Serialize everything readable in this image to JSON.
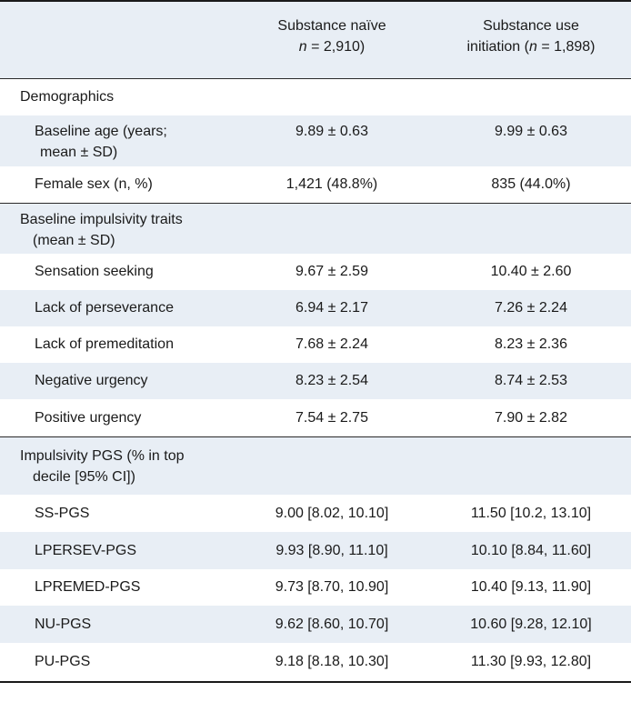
{
  "header": {
    "col1": "",
    "col2_line1": "Substance naïve",
    "col2_n": "n",
    "col2_line2_rest": " = 2,910)",
    "col3_line1": "Substance use",
    "col3_line2_pre": "initiation (",
    "col3_n": "n",
    "col3_line2_rest": " = 1,898)"
  },
  "sections": {
    "demographics": {
      "title": "Demographics",
      "rows": [
        {
          "label_line1": "Baseline age (years;",
          "label_line2": "mean ± SD)",
          "naive": "9.89 ± 0.63",
          "initiation": "9.99 ± 0.63"
        },
        {
          "label_line1": "Female sex (n, %)",
          "naive": "1,421 (48.8%)",
          "initiation": "835 (44.0%)"
        }
      ]
    },
    "impulsivity": {
      "title_line1": "Baseline impulsivity traits",
      "title_line2": "(mean ± SD)",
      "rows": [
        {
          "label": "Sensation seeking",
          "naive": "9.67 ± 2.59",
          "initiation": "10.40 ± 2.60"
        },
        {
          "label": "Lack of perseverance",
          "naive": "6.94 ± 2.17",
          "initiation": "7.26 ± 2.24"
        },
        {
          "label": "Lack of premeditation",
          "naive": "7.68 ± 2.24",
          "initiation": "8.23 ± 2.36"
        },
        {
          "label": "Negative urgency",
          "naive": "8.23 ± 2.54",
          "initiation": "8.74 ± 2.53"
        },
        {
          "label": "Positive urgency",
          "naive": "7.54 ± 2.75",
          "initiation": "7.90 ± 2.82"
        }
      ]
    },
    "pgs": {
      "title_line1": "Impulsivity PGS (% in top",
      "title_line2": "decile [95% CI])",
      "rows": [
        {
          "label": "SS-PGS",
          "naive": "9.00 [8.02, 10.10]",
          "initiation": "11.50 [10.2, 13.10]"
        },
        {
          "label": "LPERSEV-PGS",
          "naive": "9.93 [8.90, 11.10]",
          "initiation": "10.10 [8.84, 11.60]"
        },
        {
          "label": "LPREMED-PGS",
          "naive": "9.73 [8.70, 10.90]",
          "initiation": "10.40 [9.13, 11.90]"
        },
        {
          "label": "NU-PGS",
          "naive": "9.62 [8.60, 10.70]",
          "initiation": "10.60 [9.28, 12.10]"
        },
        {
          "label": "PU-PGS",
          "naive": "9.18 [8.18, 10.30]",
          "initiation": "11.30 [9.93, 12.80]"
        }
      ]
    }
  }
}
